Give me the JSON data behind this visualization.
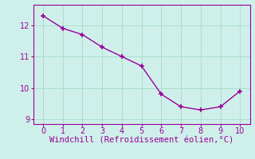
{
  "x": [
    0,
    1,
    2,
    3,
    4,
    5,
    6,
    7,
    8,
    9,
    10
  ],
  "y": [
    12.3,
    11.9,
    11.7,
    11.3,
    11.0,
    10.7,
    9.8,
    9.4,
    9.3,
    9.4,
    9.9
  ],
  "line_color": "#990099",
  "marker": "+",
  "marker_size": 4,
  "marker_color": "#990099",
  "bg_color": "#cff0ea",
  "grid_color": "#aaddcc",
  "xlabel": "Windchill (Refroidissement éolien,°C)",
  "xlabel_color": "#990099",
  "xlabel_fontsize": 7.5,
  "tick_color": "#990099",
  "tick_fontsize": 7,
  "xlim": [
    -0.5,
    10.5
  ],
  "ylim": [
    8.85,
    12.65
  ],
  "yticks": [
    9,
    10,
    11,
    12
  ],
  "xticks": [
    0,
    1,
    2,
    3,
    4,
    5,
    6,
    7,
    8,
    9,
    10
  ],
  "spine_color": "#990099",
  "linewidth": 1.0
}
